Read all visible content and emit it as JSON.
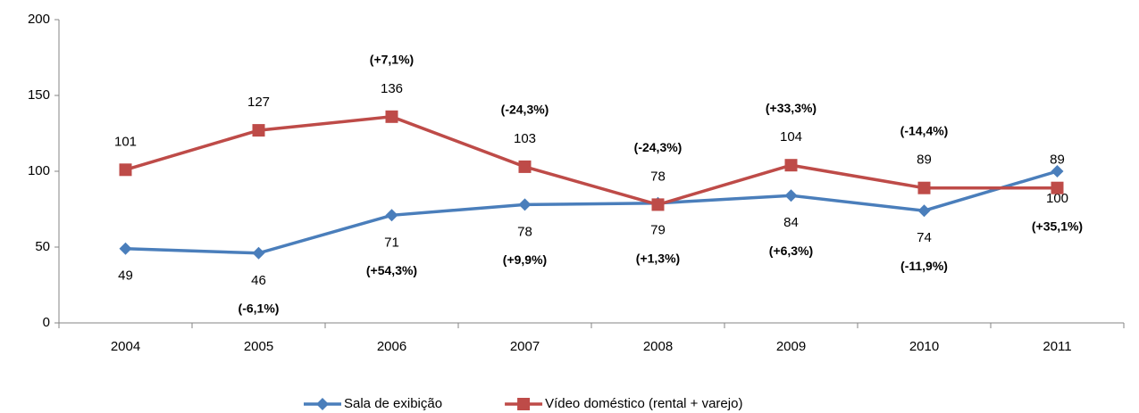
{
  "chart_data": {
    "type": "line",
    "categories": [
      "2004",
      "2005",
      "2006",
      "2007",
      "2008",
      "2009",
      "2010",
      "2011"
    ],
    "series": [
      {
        "name": "Sala de exibição",
        "color": "#4a7ebb",
        "marker": "diamond",
        "values": [
          49,
          46,
          71,
          78,
          79,
          84,
          74,
          100
        ],
        "changes": [
          null,
          "(-6,1%)",
          "(+54,3%)",
          "(+9,9%)",
          "(+1,3%)",
          "(+6,3%)",
          "(-11,9%)",
          "(+35,1%)"
        ],
        "label_position": "below"
      },
      {
        "name": "Vídeo doméstico (rental + varejo)",
        "color": "#be4b48",
        "marker": "square",
        "values": [
          101,
          127,
          136,
          103,
          78,
          104,
          89,
          89
        ],
        "changes": [
          null,
          null,
          "(+7,1%)",
          "(-24,3%)",
          "(-24,3%)",
          "(+33,3%)",
          "(-14,4%)",
          null
        ],
        "label_position": "above"
      }
    ],
    "ylim": [
      0,
      200
    ],
    "yticks": [
      0,
      50,
      100,
      150,
      200
    ],
    "grid": false,
    "legend": "bottom"
  }
}
